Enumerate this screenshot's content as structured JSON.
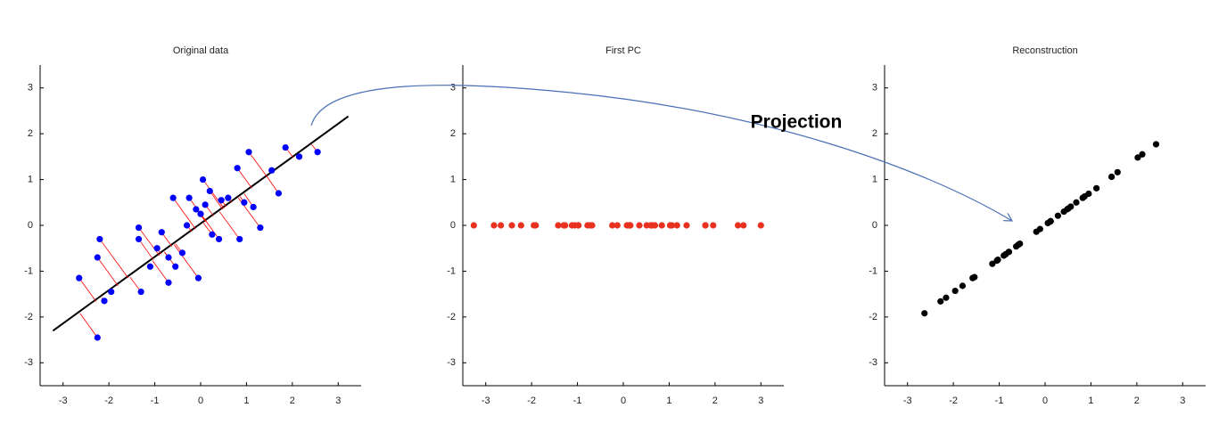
{
  "annotation": "Projection",
  "chart_data": [
    {
      "type": "scatter",
      "title": "Original data",
      "color": "#0000ff",
      "x": [
        -2.65,
        -2.25,
        -2.2,
        -2.25,
        -2.1,
        -1.95,
        -1.35,
        -1.3,
        -1.1,
        -0.95,
        -0.85,
        -0.7,
        -0.7,
        -0.6,
        -0.55,
        -0.4,
        -0.25,
        -0.1,
        -0.05,
        0.05,
        0.1,
        0.2,
        0.25,
        0.4,
        0.45,
        0.6,
        0.8,
        0.85,
        0.95,
        1.05,
        1.15,
        1.3,
        1.55,
        1.7,
        1.85,
        2.15,
        2.55,
        -1.35,
        0.0,
        -0.3
      ],
      "values": [
        -1.15,
        -2.45,
        -0.3,
        -0.7,
        -1.65,
        -1.45,
        -0.05,
        -1.45,
        -0.9,
        -0.5,
        -0.15,
        -0.7,
        -1.25,
        0.6,
        -0.9,
        -0.6,
        0.6,
        0.35,
        -1.15,
        1.0,
        0.45,
        0.75,
        -0.2,
        -0.3,
        0.55,
        0.6,
        1.25,
        -0.3,
        0.5,
        1.6,
        0.4,
        -0.05,
        1.2,
        0.7,
        1.7,
        1.5,
        1.6,
        -0.3,
        0.25,
        0.0
      ],
      "pc_line": {
        "color": "#000000",
        "x": [
          -3.22,
          3.22
        ],
        "values": [
          -2.3,
          2.38
        ]
      },
      "projection_color": "#ff0000",
      "xlim": [
        -3.5,
        3.5
      ],
      "ylim": [
        -3.5,
        3.5
      ],
      "xticks": [
        -3,
        -2,
        -1,
        0,
        1,
        2,
        3
      ],
      "yticks": [
        -3,
        -2,
        -1,
        0,
        1,
        2,
        3
      ]
    },
    {
      "type": "scatter",
      "title": "First PC",
      "color": "#e8311f",
      "x": [
        -2.82,
        -3.26,
        -1.95,
        -2.23,
        -2.67,
        -2.43,
        -1.12,
        -1.91,
        -1.42,
        -1.06,
        -0.78,
        -0.98,
        -1.3,
        -0.13,
        -0.98,
        -0.68,
        0.15,
        0.13,
        -0.72,
        0.63,
        0.35,
        0.6,
        0.08,
        0.15,
        0.69,
        0.84,
        1.38,
        0.51,
        1.06,
        1.79,
        1.17,
        1.02,
        1.96,
        1.79,
        2.5,
        2.62,
        3.0,
        -1.27,
        0.15,
        -0.24
      ],
      "values": [
        0,
        0,
        0,
        0,
        0,
        0,
        0,
        0,
        0,
        0,
        0,
        0,
        0,
        0,
        0,
        0,
        0,
        0,
        0,
        0,
        0,
        0,
        0,
        0,
        0,
        0,
        0,
        0,
        0,
        0,
        0,
        0,
        0,
        0,
        0,
        0,
        0,
        0,
        0,
        0
      ],
      "xlim": [
        -3.5,
        3.5
      ],
      "ylim": [
        -3.5,
        3.5
      ],
      "xticks": [
        -3,
        -2,
        -1,
        0,
        1,
        2,
        3
      ],
      "yticks": [
        -3,
        -2,
        -1,
        0,
        1,
        2,
        3
      ]
    },
    {
      "type": "scatter",
      "title": "Reconstruction",
      "color": "#000000",
      "x": [
        -2.28,
        -2.63,
        -1.58,
        -1.8,
        -2.16,
        -1.96,
        -0.9,
        -1.54,
        -1.15,
        -0.86,
        -0.63,
        -0.79,
        -1.05,
        -0.11,
        -0.79,
        -0.55,
        0.12,
        0.11,
        -0.58,
        0.51,
        0.28,
        0.48,
        0.06,
        0.12,
        0.56,
        0.68,
        1.12,
        0.41,
        0.86,
        1.45,
        0.95,
        0.82,
        1.58,
        1.45,
        2.02,
        2.12,
        2.42,
        -1.03,
        0.12,
        -0.19
      ],
      "values": [
        -1.66,
        -1.92,
        -1.15,
        -1.32,
        -1.58,
        -1.43,
        -0.66,
        -1.13,
        -0.84,
        -0.63,
        -0.46,
        -0.58,
        -0.77,
        -0.08,
        -0.58,
        -0.4,
        0.09,
        0.08,
        -0.42,
        0.37,
        0.21,
        0.35,
        0.05,
        0.09,
        0.41,
        0.5,
        0.81,
        0.3,
        0.63,
        1.06,
        0.69,
        0.6,
        1.16,
        1.06,
        1.48,
        1.55,
        1.77,
        -0.75,
        0.09,
        -0.14
      ],
      "xlim": [
        -3.5,
        3.5
      ],
      "ylim": [
        -3.5,
        3.5
      ],
      "xticks": [
        -3,
        -2,
        -1,
        0,
        1,
        2,
        3
      ],
      "yticks": [
        -3,
        -2,
        -1,
        0,
        1,
        2,
        3
      ]
    }
  ]
}
